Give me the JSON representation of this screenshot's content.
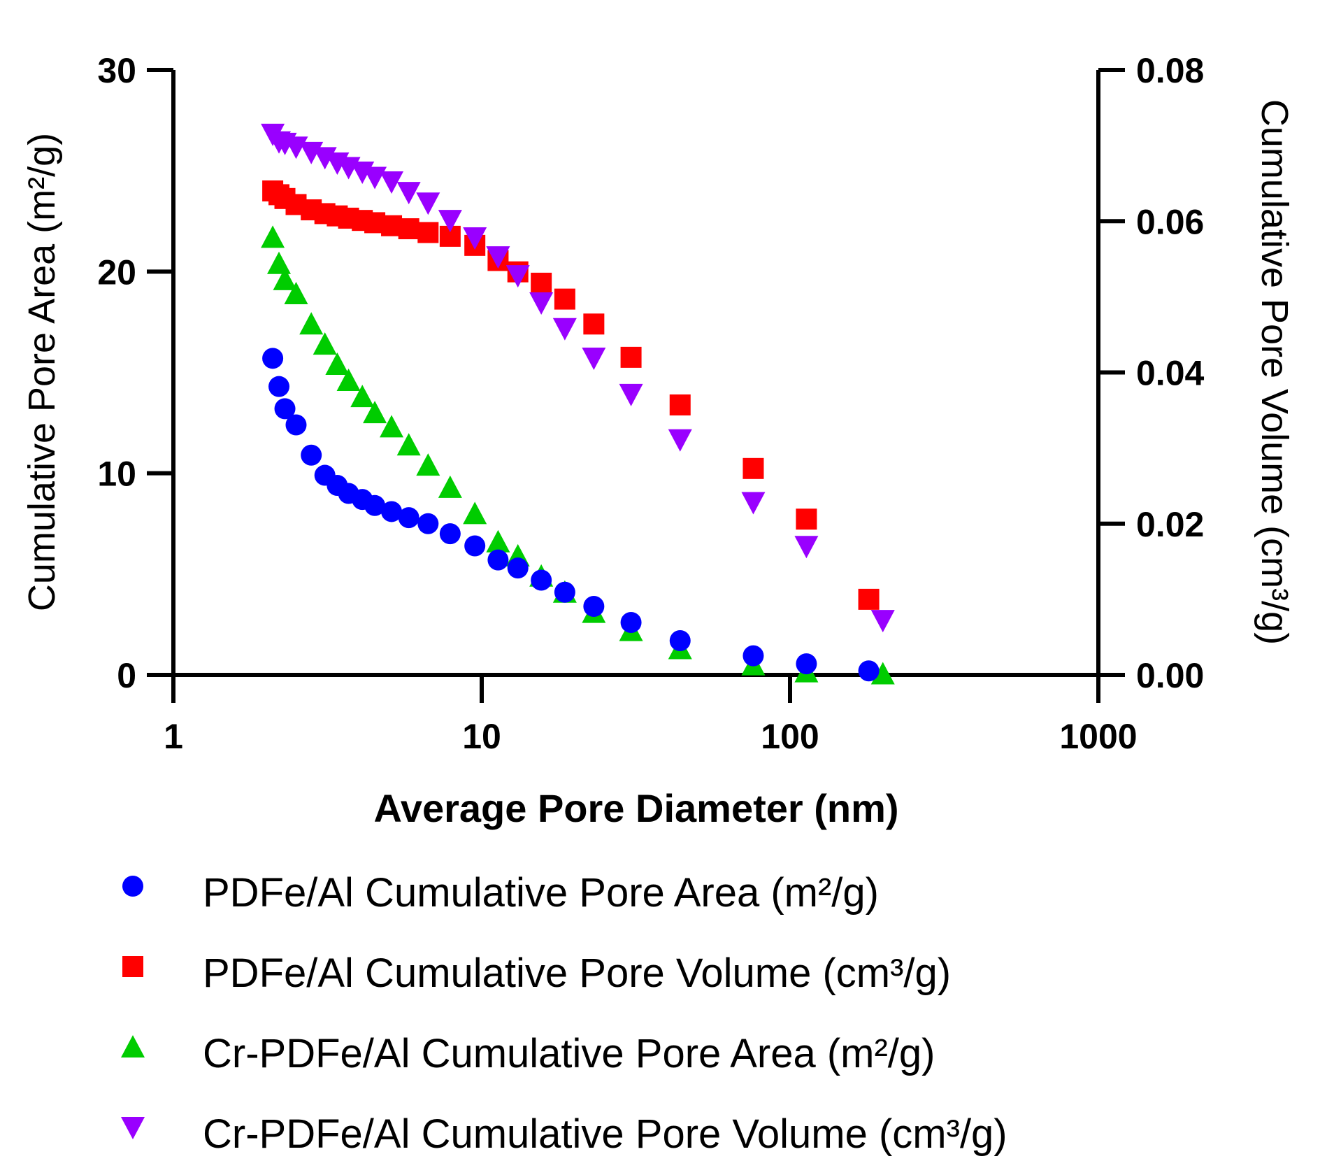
{
  "chart_data": {
    "type": "scatter",
    "xscale": "log",
    "xlabel": "Average Pore Diameter (nm)",
    "ylabel_left": "Cumulative Pore Area (m²/g)",
    "ylabel_right": "Cumulative Pore Volume (cm³/g)",
    "xlim": [
      1,
      1000
    ],
    "ylim_left": [
      0,
      30
    ],
    "ylim_right": [
      0,
      0.08
    ],
    "x_ticks": [
      1,
      10,
      100,
      1000
    ],
    "x_tick_labels": [
      "1",
      "10",
      "100",
      "1000"
    ],
    "y_left_ticks": [
      0,
      10,
      20,
      30
    ],
    "y_left_tick_labels": [
      "0",
      "10",
      "20",
      "30"
    ],
    "y_right_ticks": [
      0,
      0.02,
      0.04,
      0.06,
      0.08
    ],
    "y_right_tick_labels": [
      "0.00",
      "0.02",
      "0.04",
      "0.06",
      "0.08"
    ],
    "grid": false,
    "legend_position": "bottom",
    "series": [
      {
        "name": "PDFe/Al Cumulative Pore Area (m²/g)",
        "axis": "left",
        "marker": "circle",
        "color": "#0000FF",
        "points": [
          [
            2.1,
            15.7
          ],
          [
            2.2,
            14.3
          ],
          [
            2.3,
            13.2
          ],
          [
            2.5,
            12.4
          ],
          [
            2.8,
            10.9
          ],
          [
            3.1,
            9.9
          ],
          [
            3.4,
            9.4
          ],
          [
            3.7,
            9.0
          ],
          [
            4.1,
            8.7
          ],
          [
            4.5,
            8.4
          ],
          [
            5.1,
            8.1
          ],
          [
            5.8,
            7.8
          ],
          [
            6.7,
            7.5
          ],
          [
            7.9,
            7.0
          ],
          [
            9.5,
            6.4
          ],
          [
            11.3,
            5.7
          ],
          [
            13.1,
            5.3
          ],
          [
            15.6,
            4.7
          ],
          [
            18.6,
            4.1
          ],
          [
            23.1,
            3.4
          ],
          [
            30.5,
            2.6
          ],
          [
            44.0,
            1.7
          ],
          [
            76.0,
            0.95
          ],
          [
            113.0,
            0.55
          ],
          [
            180.0,
            0.2
          ]
        ]
      },
      {
        "name": "PDFe/Al Cumulative Pore Volume (cm³/g)",
        "axis": "right",
        "marker": "square",
        "color": "#FF0000",
        "points": [
          [
            2.1,
            0.064
          ],
          [
            2.2,
            0.0635
          ],
          [
            2.3,
            0.063
          ],
          [
            2.5,
            0.0622
          ],
          [
            2.8,
            0.0615
          ],
          [
            3.1,
            0.061
          ],
          [
            3.4,
            0.0607
          ],
          [
            3.7,
            0.0604
          ],
          [
            4.1,
            0.0601
          ],
          [
            4.5,
            0.0598
          ],
          [
            5.1,
            0.0594
          ],
          [
            5.8,
            0.059
          ],
          [
            6.7,
            0.0585
          ],
          [
            7.9,
            0.058
          ],
          [
            9.5,
            0.0568
          ],
          [
            11.3,
            0.0548
          ],
          [
            13.1,
            0.0533
          ],
          [
            15.6,
            0.0518
          ],
          [
            18.6,
            0.0497
          ],
          [
            23.1,
            0.0464
          ],
          [
            30.5,
            0.042
          ],
          [
            44.0,
            0.0357
          ],
          [
            76.0,
            0.0273
          ],
          [
            113.0,
            0.0206
          ],
          [
            180.0,
            0.01
          ]
        ]
      },
      {
        "name": "Cr-PDFe/Al Cumulative Pore Area (m²/g)",
        "axis": "left",
        "marker": "triangle-up",
        "color": "#00CC00",
        "points": [
          [
            2.1,
            21.7
          ],
          [
            2.2,
            20.4
          ],
          [
            2.3,
            19.6
          ],
          [
            2.5,
            18.9
          ],
          [
            2.8,
            17.4
          ],
          [
            3.1,
            16.4
          ],
          [
            3.4,
            15.4
          ],
          [
            3.7,
            14.6
          ],
          [
            4.1,
            13.8
          ],
          [
            4.5,
            13.0
          ],
          [
            5.1,
            12.3
          ],
          [
            5.8,
            11.4
          ],
          [
            6.7,
            10.4
          ],
          [
            7.9,
            9.3
          ],
          [
            9.5,
            8.0
          ],
          [
            11.3,
            6.6
          ],
          [
            13.1,
            5.9
          ],
          [
            15.6,
            4.9
          ],
          [
            18.6,
            4.1
          ],
          [
            23.1,
            3.1
          ],
          [
            30.5,
            2.2
          ],
          [
            44.0,
            1.3
          ],
          [
            76.0,
            0.5
          ],
          [
            113.0,
            0.15
          ],
          [
            200.0,
            0.05
          ]
        ]
      },
      {
        "name": "Cr-PDFe/Al Cumulative Pore Volume (cm³/g)",
        "axis": "right",
        "marker": "triangle-down",
        "color": "#9900FF",
        "points": [
          [
            2.1,
            0.0715
          ],
          [
            2.2,
            0.0705
          ],
          [
            2.3,
            0.0703
          ],
          [
            2.5,
            0.0698
          ],
          [
            2.8,
            0.0691
          ],
          [
            3.1,
            0.0684
          ],
          [
            3.4,
            0.0677
          ],
          [
            3.7,
            0.0671
          ],
          [
            4.1,
            0.0665
          ],
          [
            4.5,
            0.0658
          ],
          [
            5.1,
            0.0652
          ],
          [
            5.8,
            0.0638
          ],
          [
            6.7,
            0.0624
          ],
          [
            7.9,
            0.0601
          ],
          [
            9.5,
            0.0578
          ],
          [
            11.3,
            0.0553
          ],
          [
            13.1,
            0.0528
          ],
          [
            15.6,
            0.0492
          ],
          [
            18.6,
            0.0458
          ],
          [
            23.1,
            0.0419
          ],
          [
            30.5,
            0.0371
          ],
          [
            44.0,
            0.0311
          ],
          [
            76.0,
            0.0228
          ],
          [
            113.0,
            0.017
          ],
          [
            200.0,
            0.0072
          ]
        ]
      }
    ]
  }
}
